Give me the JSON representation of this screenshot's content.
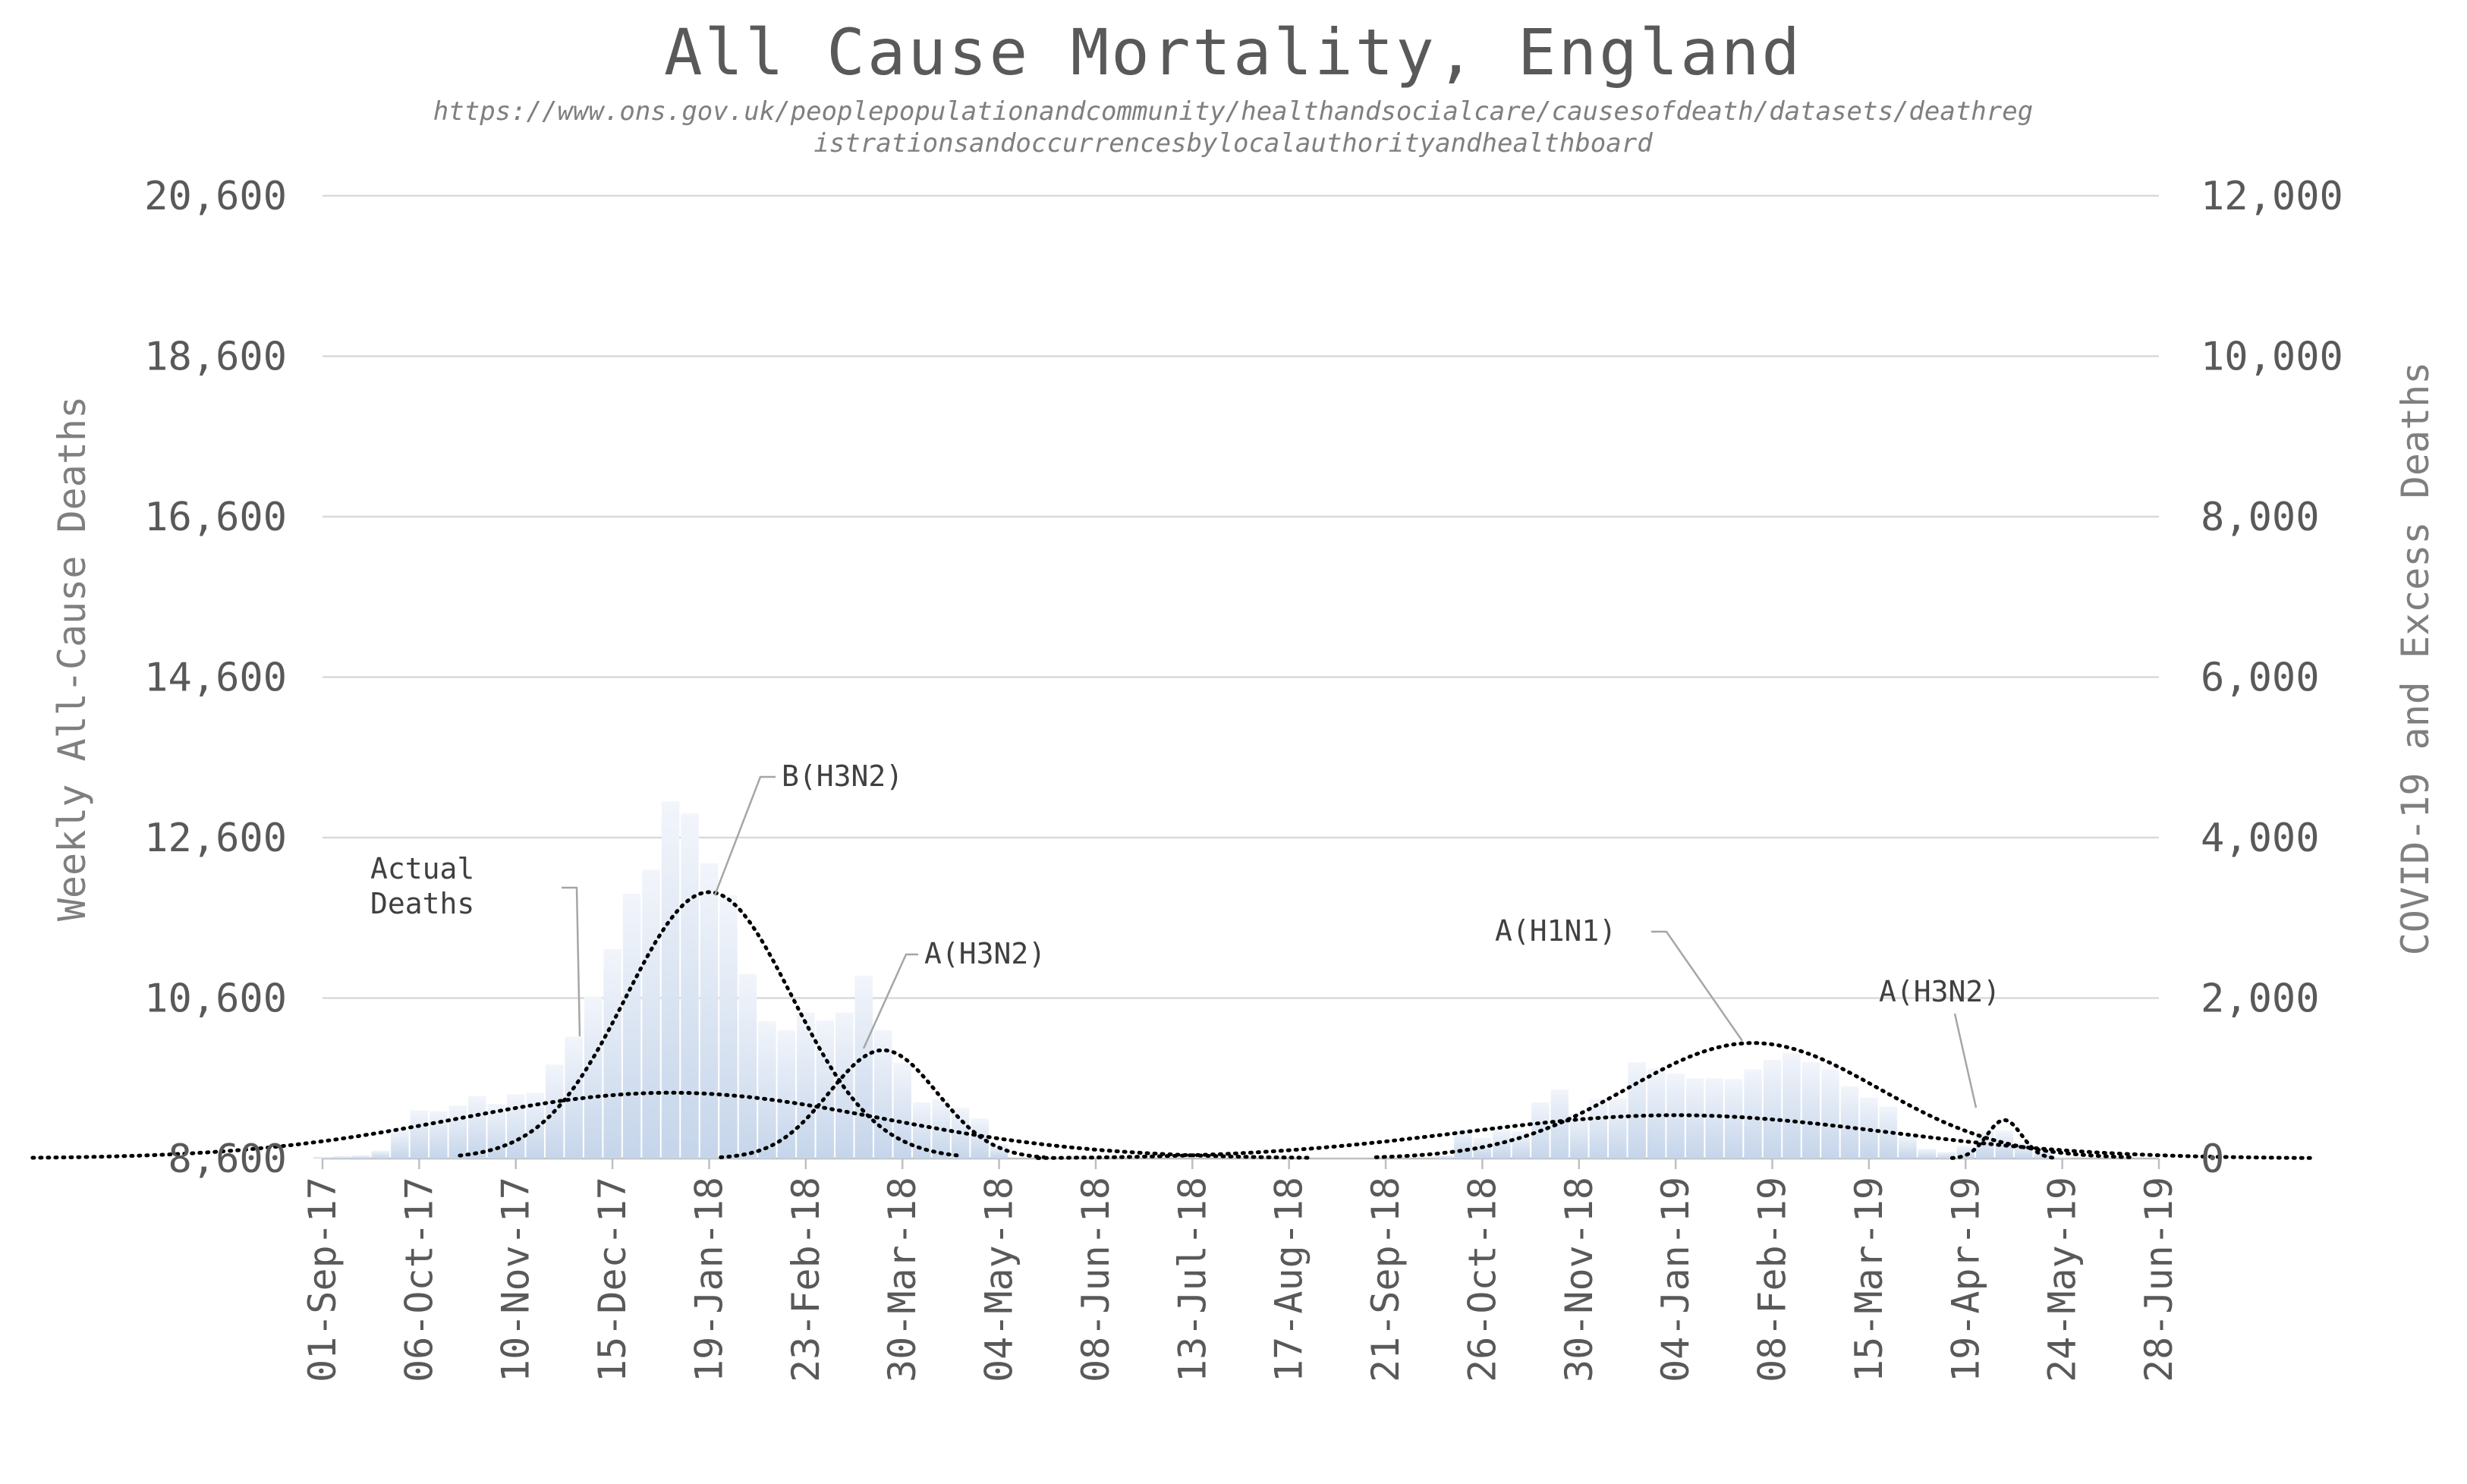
{
  "chart_data": {
    "type": "bar",
    "title": "All Cause Mortality, England",
    "subtitle_lines": [
      "https://www.ons.gov.uk/peoplepopulationandcommunity/healthandsocialcare/causesofdeath/datasets/deathreg",
      "istrationsandoccurrencesbylocalauthorityandhealthboard"
    ],
    "ylabel": "Weekly All-Cause Deaths",
    "y2label": "COVID-19 and Excess Deaths",
    "ylim": [
      8600,
      20600
    ],
    "y2lim": [
      0,
      12000
    ],
    "y_ticks": [
      "8,600",
      "10,600",
      "12,600",
      "14,600",
      "16,600",
      "18,600",
      "20,600"
    ],
    "y2_ticks": [
      "0",
      "2,000",
      "4,000",
      "6,000",
      "8,000",
      "10,000",
      "12,000"
    ],
    "x_ticks": [
      "01-Sep-17",
      "06-Oct-17",
      "10-Nov-17",
      "15-Dec-17",
      "19-Jan-18",
      "23-Feb-18",
      "30-Mar-18",
      "04-May-18",
      "08-Jun-18",
      "13-Jul-18",
      "17-Aug-18",
      "21-Sep-18",
      "26-Oct-18",
      "30-Nov-18",
      "04-Jan-19",
      "08-Feb-19",
      "15-Mar-19",
      "19-Apr-19",
      "24-May-19",
      "28-Jun-19"
    ],
    "grid": true,
    "series": [
      {
        "name": "Actual Deaths",
        "color": "#c5d5ea",
        "x": [
          "01-Sep-17",
          "08-Sep-17",
          "15-Sep-17",
          "22-Sep-17",
          "29-Sep-17",
          "06-Oct-17",
          "13-Oct-17",
          "20-Oct-17",
          "27-Oct-17",
          "03-Nov-17",
          "10-Nov-17",
          "17-Nov-17",
          "24-Nov-17",
          "01-Dec-17",
          "08-Dec-17",
          "15-Dec-17",
          "22-Dec-17",
          "29-Dec-17",
          "05-Jan-18",
          "12-Jan-18",
          "19-Jan-18",
          "26-Jan-18",
          "02-Feb-18",
          "09-Feb-18",
          "16-Feb-18",
          "23-Feb-18",
          "02-Mar-18",
          "09-Mar-18",
          "16-Mar-18",
          "23-Mar-18",
          "30-Mar-18",
          "06-Apr-18",
          "13-Apr-18",
          "20-Apr-18",
          "27-Apr-18",
          "04-May-18",
          "11-May-18",
          "18-May-18",
          "25-May-18",
          "01-Jun-18",
          "08-Jun-18",
          "12-Oct-18",
          "19-Oct-18",
          "26-Oct-18",
          "02-Nov-18",
          "09-Nov-18",
          "16-Nov-18",
          "23-Nov-18",
          "30-Nov-18",
          "07-Dec-18",
          "14-Dec-18",
          "21-Dec-18",
          "28-Dec-18",
          "04-Jan-19",
          "11-Jan-19",
          "18-Jan-19",
          "25-Jan-19",
          "01-Feb-19",
          "08-Feb-19",
          "15-Feb-19",
          "22-Feb-19",
          "01-Mar-19",
          "08-Mar-19",
          "15-Mar-19",
          "22-Mar-19",
          "29-Mar-19",
          "05-Apr-19",
          "12-Apr-19",
          "19-Apr-19",
          "26-Apr-19",
          "03-May-19",
          "10-May-19",
          "17-May-19",
          "24-May-19"
        ],
        "values": [
          8620,
          8630,
          8640,
          8700,
          8960,
          9200,
          9190,
          9260,
          9380,
          9280,
          9400,
          9420,
          9770,
          10120,
          10620,
          11210,
          11900,
          12200,
          13050,
          12900,
          12280,
          11880,
          10900,
          10310,
          10200,
          10420,
          10320,
          10420,
          10880,
          10200,
          9790,
          9300,
          9340,
          9230,
          9100,
          8780,
          8600,
          8600,
          8600,
          8640,
          8600,
          8640,
          8960,
          8860,
          8960,
          8940,
          9300,
          9460,
          9160,
          9340,
          9350,
          9800,
          9720,
          9660,
          9600,
          9600,
          9590,
          9710,
          9830,
          9920,
          9800,
          9710,
          9500,
          9360,
          9250,
          8880,
          8720,
          8680,
          8760,
          8950,
          8950,
          8800,
          8700,
          8620
        ]
      }
    ],
    "fitted_curves": [
      {
        "name": "B(H3N2)",
        "axis": "right",
        "peak_date": "19-Jan-18",
        "peak": 3320,
        "sd_weeks": 4.3
      },
      {
        "name": "A(H3N2)",
        "axis": "right",
        "peak_date": "23-Mar-18",
        "peak": 1350,
        "sd_weeks": 2.8
      },
      {
        "name": "",
        "axis": "right",
        "peak_date": "05-Jan-18",
        "peak": 820,
        "sd_weeks": 11
      },
      {
        "name": "A(H1N1)",
        "axis": "right",
        "peak_date": "01-Feb-19",
        "peak": 1440,
        "sd_weeks": 6.5
      },
      {
        "name": "A(H3N2)",
        "axis": "right",
        "peak_date": "03-May-19",
        "peak": 480,
        "sd_weeks": 0.9
      },
      {
        "name": "",
        "axis": "right",
        "peak_date": "04-Jan-19",
        "peak": 540,
        "sd_weeks": 11
      }
    ],
    "annotations": [
      "Actual Deaths",
      "B(H3N2)",
      "A(H3N2)",
      "A(H1N1)",
      "A(H3N2)"
    ]
  }
}
